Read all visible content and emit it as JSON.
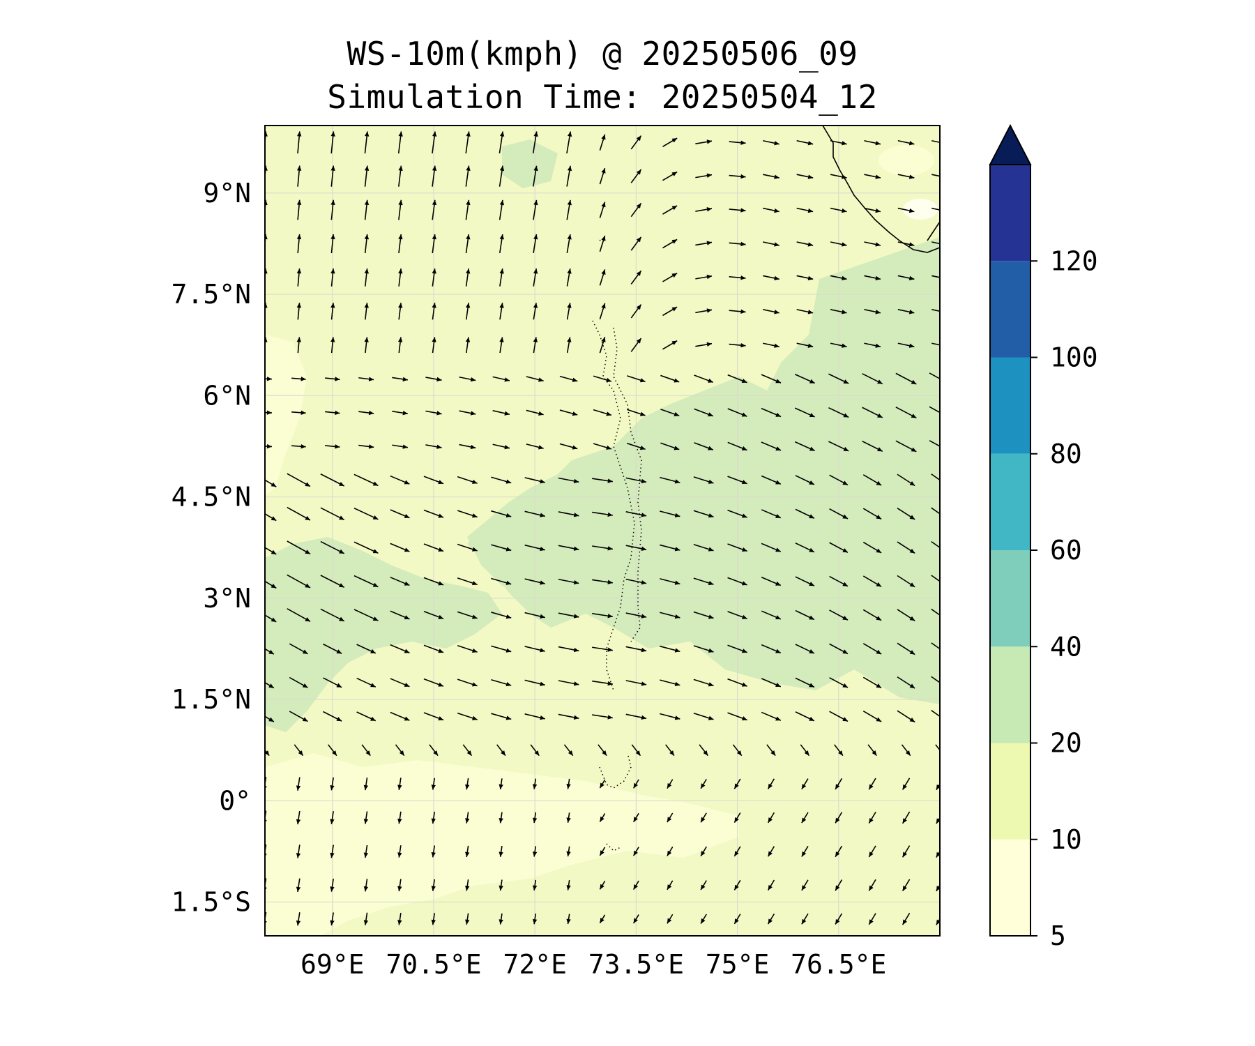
{
  "title": "WS-10m(kmph) @ 20250506_09",
  "subtitle": "Simulation Time: 20250504_12",
  "map": {
    "lon_range": [
      68.0,
      78.0
    ],
    "lat_range": [
      -2.0,
      10.0
    ],
    "xticks": [
      {
        "value": 69.0,
        "label": "69°E"
      },
      {
        "value": 70.5,
        "label": "70.5°E"
      },
      {
        "value": 72.0,
        "label": "72°E"
      },
      {
        "value": 73.5,
        "label": "73.5°E"
      },
      {
        "value": 75.0,
        "label": "75°E"
      },
      {
        "value": 76.5,
        "label": "76.5°E"
      }
    ],
    "yticks": [
      {
        "value": 9.0,
        "label": "9°N"
      },
      {
        "value": 7.5,
        "label": "7.5°N"
      },
      {
        "value": 6.0,
        "label": "6°N"
      },
      {
        "value": 4.5,
        "label": "4.5°N"
      },
      {
        "value": 3.0,
        "label": "3°N"
      },
      {
        "value": 1.5,
        "label": "1.5°N"
      },
      {
        "value": 0.0,
        "label": "0°"
      },
      {
        "value": -1.5,
        "label": "1.5°S"
      }
    ],
    "field": "10 m wind speed (filled contours) with wind vectors",
    "gridlines": true
  },
  "colorbar": {
    "levels": [
      "5",
      "10",
      "20",
      "40",
      "60",
      "80",
      "100",
      "120"
    ],
    "colors": [
      "#ffffd9",
      "#edf8b1",
      "#c7e9b4",
      "#7fcdbb",
      "#41b6c4",
      "#1d91c0",
      "#225ea8",
      "#253494"
    ],
    "extend_color": "#081d58",
    "extend": "max"
  }
}
